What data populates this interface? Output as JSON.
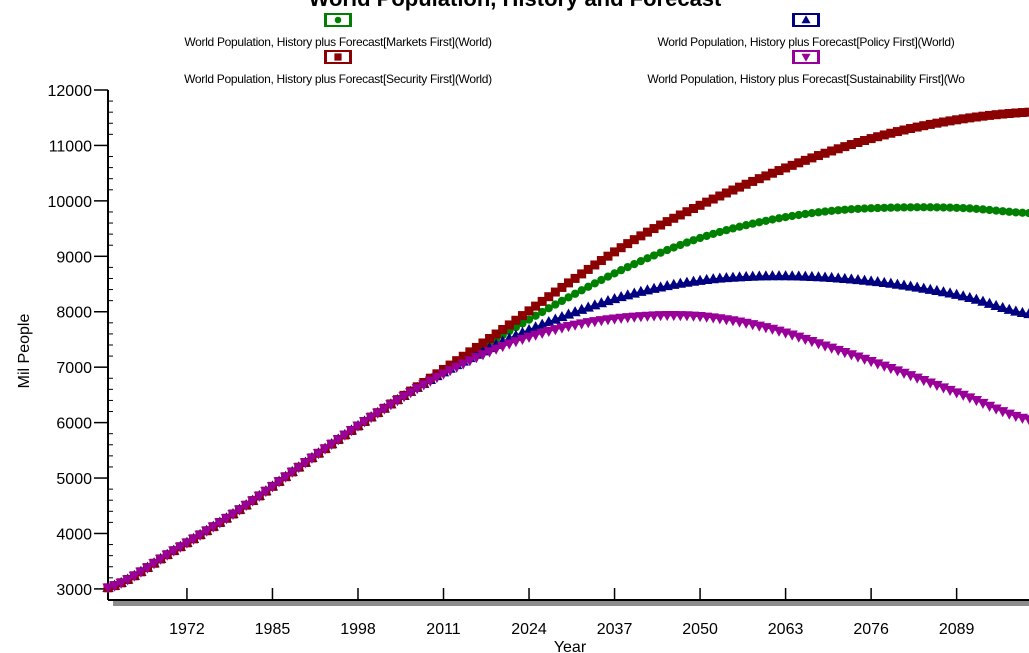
{
  "chart_data": {
    "type": "scatter",
    "title": "World Population, History and Forecast",
    "xlabel": "Year",
    "ylabel": "Mil People",
    "xlim": [
      1960,
      2100
    ],
    "ylim": [
      2800,
      12000
    ],
    "xticks": [
      1972,
      1985,
      1998,
      2011,
      2024,
      2037,
      2050,
      2063,
      2076,
      2089
    ],
    "yticks": [
      3000,
      4000,
      5000,
      6000,
      7000,
      8000,
      9000,
      10000,
      11000,
      12000
    ],
    "legend_placement": "top",
    "grid": false,
    "series": [
      {
        "name": "World Population, History plus Forecast[Markets First](World)",
        "color": "#008000",
        "marker": "circle",
        "points": [
          [
            1960,
            3020
          ],
          [
            1970,
            3690
          ],
          [
            1980,
            4430
          ],
          [
            1990,
            5280
          ],
          [
            2000,
            6100
          ],
          [
            2010,
            6860
          ],
          [
            2020,
            7580
          ],
          [
            2030,
            8260
          ],
          [
            2040,
            8860
          ],
          [
            2050,
            9330
          ],
          [
            2060,
            9640
          ],
          [
            2070,
            9820
          ],
          [
            2080,
            9880
          ],
          [
            2090,
            9870
          ],
          [
            2100,
            9780
          ]
        ]
      },
      {
        "name": "World Population, History plus Forecast[Policy First](World)",
        "color": "#000080",
        "marker": "triangle-up",
        "points": [
          [
            1960,
            3020
          ],
          [
            1970,
            3690
          ],
          [
            1980,
            4430
          ],
          [
            1990,
            5280
          ],
          [
            2000,
            6100
          ],
          [
            2010,
            6840
          ],
          [
            2020,
            7460
          ],
          [
            2030,
            7950
          ],
          [
            2040,
            8330
          ],
          [
            2050,
            8560
          ],
          [
            2060,
            8640
          ],
          [
            2070,
            8610
          ],
          [
            2080,
            8490
          ],
          [
            2090,
            8280
          ],
          [
            2100,
            7960
          ]
        ]
      },
      {
        "name": "World Population, History plus Forecast[Security First](World)",
        "color": "#8B0000",
        "marker": "square",
        "points": [
          [
            1960,
            3020
          ],
          [
            1970,
            3690
          ],
          [
            1980,
            4430
          ],
          [
            1990,
            5280
          ],
          [
            2000,
            6100
          ],
          [
            2010,
            6880
          ],
          [
            2020,
            7680
          ],
          [
            2030,
            8520
          ],
          [
            2040,
            9300
          ],
          [
            2050,
            9920
          ],
          [
            2060,
            10450
          ],
          [
            2070,
            10900
          ],
          [
            2080,
            11250
          ],
          [
            2090,
            11480
          ],
          [
            2100,
            11600
          ]
        ]
      },
      {
        "name": "World Population, History plus Forecast[Sustainability First](Wo",
        "color": "#990099",
        "marker": "triangle-down",
        "points": [
          [
            1960,
            3020
          ],
          [
            1970,
            3690
          ],
          [
            1980,
            4430
          ],
          [
            1990,
            5280
          ],
          [
            2000,
            6100
          ],
          [
            2010,
            6820
          ],
          [
            2020,
            7380
          ],
          [
            2030,
            7740
          ],
          [
            2040,
            7910
          ],
          [
            2050,
            7920
          ],
          [
            2060,
            7720
          ],
          [
            2070,
            7350
          ],
          [
            2080,
            6940
          ],
          [
            2090,
            6500
          ],
          [
            2100,
            6060
          ]
        ]
      }
    ]
  }
}
